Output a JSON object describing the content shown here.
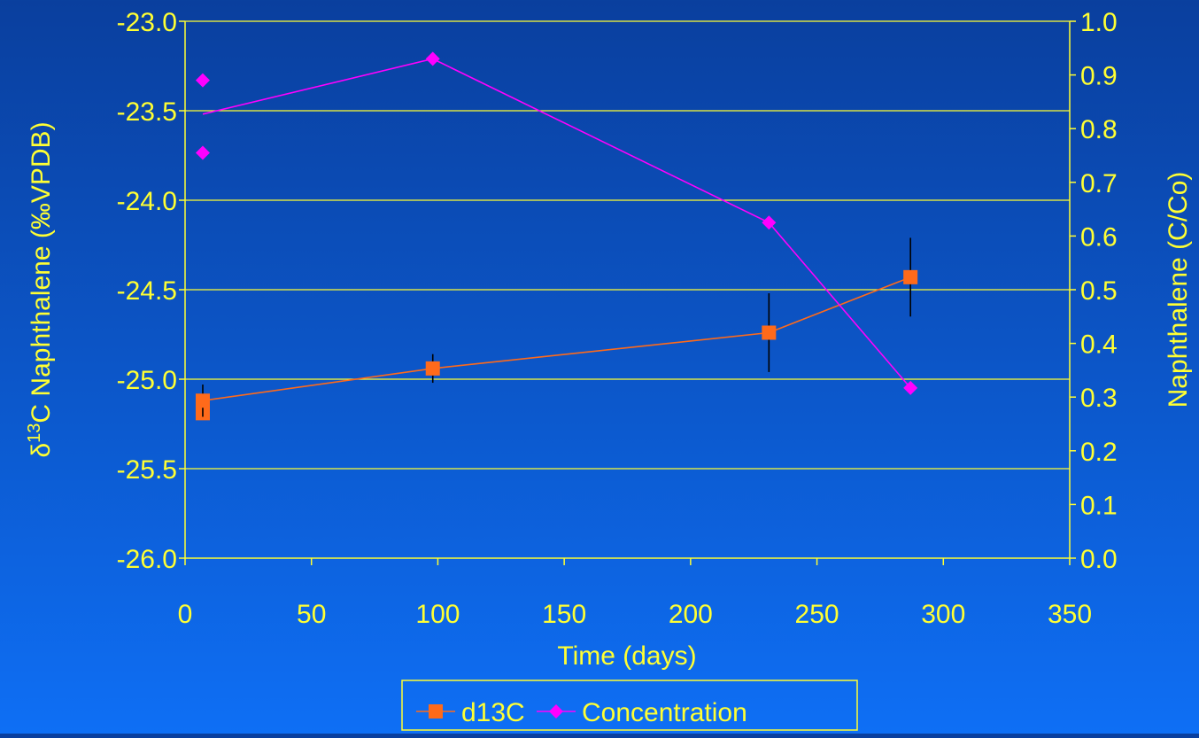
{
  "chart_data": {
    "type": "line",
    "xlabel": "Time (days)",
    "ylabel_left": {
      "prefix": "δ",
      "superscript": "13",
      "rest": "C Naphthalene (‰VPDB)"
    },
    "ylabel_right": "Naphthalene (C/Co)",
    "xlim": [
      0,
      350
    ],
    "ylim_left": [
      -26.0,
      -23.0
    ],
    "ylim_right": [
      0.0,
      1.0
    ],
    "x_ticks": [
      "0",
      "50",
      "100",
      "150",
      "200",
      "250",
      "300",
      "350"
    ],
    "y_left_ticks": [
      "-23.0",
      "-23.5",
      "-24.0",
      "-24.5",
      "-25.0",
      "-25.5",
      "-26.0"
    ],
    "y_right_ticks": [
      "1.0",
      "0.9",
      "0.8",
      "0.7",
      "0.6",
      "0.5",
      "0.4",
      "0.3",
      "0.2",
      "0.1",
      "0.0"
    ],
    "grid": "horizontal",
    "legend_position": "bottom",
    "colors": {
      "axis": "#ffff33",
      "d13C": "#ff6a1a",
      "concentration": "#ff00ff",
      "error_bar": "#000000"
    },
    "series": [
      {
        "name": "d13C",
        "axis": "left",
        "marker": "square",
        "points": [
          {
            "x": 7,
            "y": -25.19,
            "err": 0.0
          },
          {
            "x": 7,
            "y": -25.12,
            "err": 0.09
          },
          {
            "x": 98,
            "y": -24.94,
            "err": 0.08
          },
          {
            "x": 231,
            "y": -24.74,
            "err": 0.22
          },
          {
            "x": 287,
            "y": -24.43,
            "err": 0.22
          }
        ],
        "line": [
          {
            "x": 7,
            "y": -25.12
          },
          {
            "x": 98,
            "y": -24.94
          },
          {
            "x": 231,
            "y": -24.74
          },
          {
            "x": 287,
            "y": -24.43
          }
        ]
      },
      {
        "name": "Concentration",
        "axis": "right",
        "marker": "diamond",
        "points": [
          {
            "x": 7,
            "y": 0.89
          },
          {
            "x": 7,
            "y": 0.755
          },
          {
            "x": 98,
            "y": 0.93
          },
          {
            "x": 231,
            "y": 0.625
          },
          {
            "x": 287,
            "y": 0.317
          }
        ],
        "line": [
          {
            "x": 7,
            "y": 0.827
          },
          {
            "x": 98,
            "y": 0.93
          },
          {
            "x": 231,
            "y": 0.625
          },
          {
            "x": 287,
            "y": 0.317
          }
        ]
      }
    ],
    "legend": [
      {
        "label": "d13C",
        "series": "d13C"
      },
      {
        "label": "Concentration",
        "series": "Concentration"
      }
    ]
  }
}
